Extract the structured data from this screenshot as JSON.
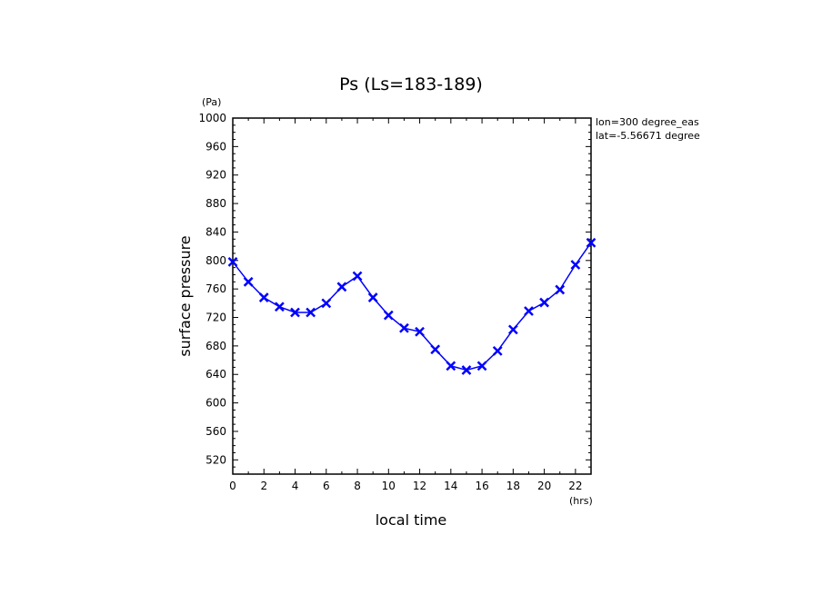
{
  "chart_data": {
    "type": "line",
    "title": "Ps (Ls=183-189)",
    "xlabel": "local time",
    "ylabel": "surface pressure",
    "x_unit": "(hrs)",
    "y_unit": "(Pa)",
    "xlim": [
      0,
      23
    ],
    "ylim": [
      500,
      1000
    ],
    "x_ticks": [
      0,
      2,
      4,
      6,
      8,
      10,
      12,
      14,
      16,
      18,
      20,
      22
    ],
    "y_ticks": [
      520,
      560,
      600,
      640,
      680,
      720,
      760,
      800,
      840,
      880,
      920,
      960,
      1000
    ],
    "grid": false,
    "annotations": [
      "lon=300 degree_eas",
      "lat=-5.56671 degree"
    ],
    "series": [
      {
        "color": "#0000ff",
        "marker": "x",
        "x": [
          0,
          1,
          2,
          3,
          4,
          5,
          6,
          7,
          8,
          9,
          10,
          11,
          12,
          13,
          14,
          15,
          16,
          17,
          18,
          19,
          20,
          21,
          22,
          23
        ],
        "y": [
          798,
          770,
          748,
          735,
          727,
          727,
          740,
          763,
          778,
          748,
          723,
          705,
          700,
          675,
          652,
          646,
          652,
          673,
          703,
          729,
          741,
          759,
          794,
          825
        ]
      }
    ]
  }
}
